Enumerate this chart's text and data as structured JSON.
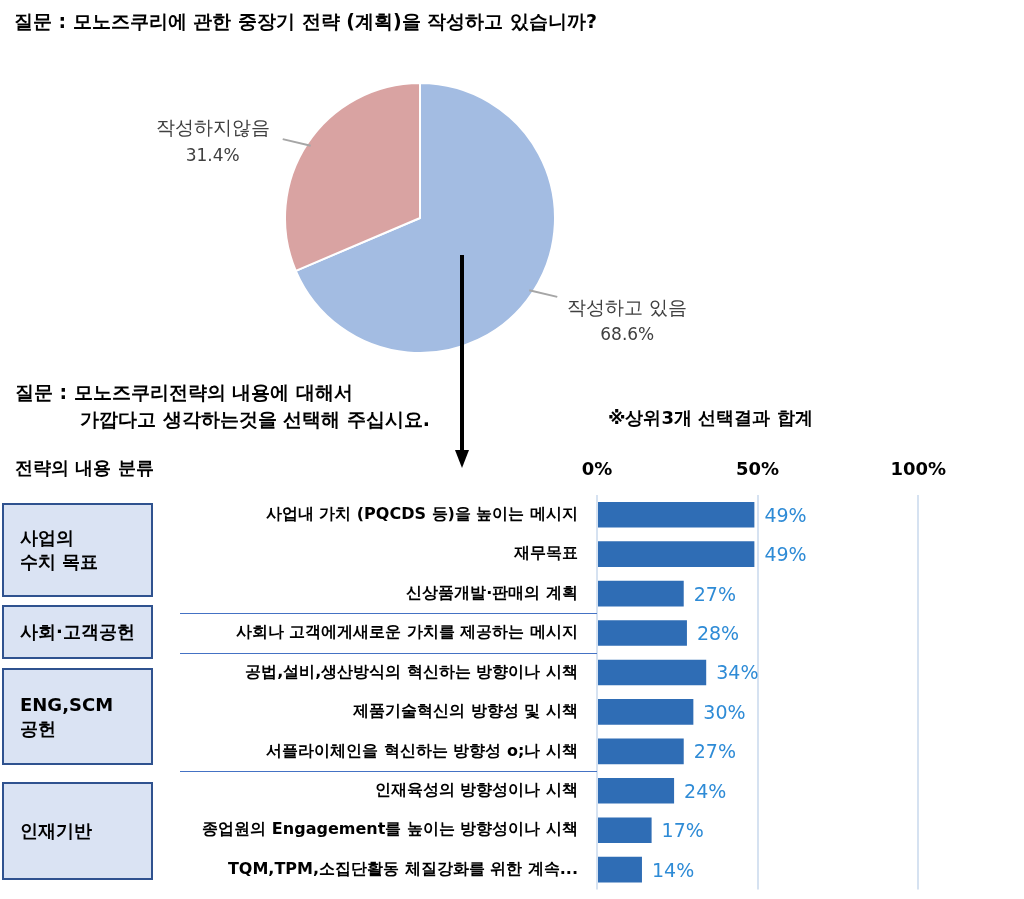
{
  "chart_data": [
    {
      "type": "pie",
      "title": "질문 : 모노즈쿠리에 관한 중장기 전략 (계획)을 작성하고 있습니까?",
      "categories": [
        "작성하고 있음",
        "작성하지않음"
      ],
      "values": [
        68.6,
        31.4
      ],
      "colors": [
        "#a3bce2",
        "#d9a3a2"
      ],
      "value_labels": [
        "68.6%",
        "31.4%"
      ]
    },
    {
      "type": "bar",
      "orientation": "horizontal",
      "title": "질문 : 모노즈쿠리전략의 내용에 대해서\n가깝다고 생각하는것을 선택해 주십시요.",
      "ylabel": "전략의 내용 분류",
      "categories": [
        "사업내 가치 (PQCDS 등)을 높이는 메시지",
        "재무목표",
        "신상품개발·판매의 계획",
        "사회나 고객에게새로운 가치를 제공하는 메시지",
        "공법,설비,생산방식의 혁신하는 방향이나 시책",
        "제품기술혁신의 방향성 및 시책",
        "서플라이체인을 혁신하는 방향성 o;나 시책",
        "인재육성의 방향성이나 시책",
        "종업원의 Engagement를 높이는 방향성이나 시책",
        "TQM,TPM,소집단활동 체질강화를 위한 계속..."
      ],
      "values": [
        49,
        49,
        27,
        28,
        34,
        30,
        27,
        24,
        17,
        14
      ],
      "color": "#2f6db5",
      "value_labels": [
        "49%",
        "49%",
        "27%",
        "28%",
        "34%",
        "30%",
        "27%",
        "24%",
        "17%",
        "14%"
      ],
      "xlim": [
        0,
        100
      ],
      "xticks": [
        {
          "value": 0,
          "label": "0%"
        },
        {
          "value": 50,
          "label": "50%"
        },
        {
          "value": 100,
          "label": "100%"
        }
      ],
      "grid": "x",
      "annotations": [
        "※상위3개 선택결과 합계",
        "사업의\n수치 목표",
        "사회·고객공헌",
        "ENG,SCM\n공헌",
        "인재기반"
      ]
    }
  ]
}
